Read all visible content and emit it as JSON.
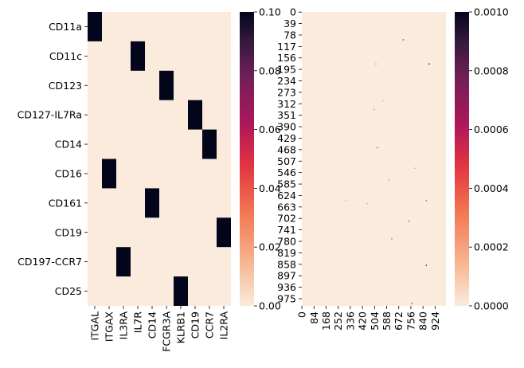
{
  "chart_data": [
    {
      "type": "heatmap",
      "row_labels": [
        "CD11a",
        "CD11c",
        "CD123",
        "CD127-IL7Ra",
        "CD14",
        "CD16",
        "CD161",
        "CD19",
        "CD197-CCR7",
        "CD25"
      ],
      "col_labels": [
        "ITGAL",
        "ITGAX",
        "IL3RA",
        "IL7R",
        "CD14",
        "FCGR3A",
        "KLRB1",
        "CD19",
        "CCR7",
        "IL2RA"
      ],
      "cells": [
        {
          "row": 0,
          "col": 0,
          "value": 0.1
        },
        {
          "row": 1,
          "col": 3,
          "value": 0.1
        },
        {
          "row": 2,
          "col": 5,
          "value": 0.1
        },
        {
          "row": 3,
          "col": 7,
          "value": 0.1
        },
        {
          "row": 4,
          "col": 8,
          "value": 0.1
        },
        {
          "row": 5,
          "col": 1,
          "value": 0.1
        },
        {
          "row": 6,
          "col": 4,
          "value": 0.1
        },
        {
          "row": 7,
          "col": 9,
          "value": 0.1
        },
        {
          "row": 8,
          "col": 2,
          "value": 0.1
        },
        {
          "row": 9,
          "col": 6,
          "value": 0.1
        }
      ],
      "default_value": 0.0,
      "colormap": "rocket_r",
      "colorbar": {
        "range": [
          0.0,
          0.1
        ],
        "ticks": [
          "0.00",
          "0.02",
          "0.04",
          "0.06",
          "0.08",
          "0.10"
        ]
      }
    },
    {
      "type": "heatmap",
      "n_rows": 1000,
      "n_cols": 1000,
      "y_tick_labels": [
        "0",
        "39",
        "78",
        "117",
        "156",
        "195",
        "234",
        "273",
        "312",
        "351",
        "390",
        "429",
        "468",
        "507",
        "546",
        "585",
        "624",
        "663",
        "702",
        "741",
        "780",
        "819",
        "858",
        "897",
        "936",
        "975"
      ],
      "x_tick_labels": [
        "0",
        "84",
        "168",
        "252",
        "336",
        "420",
        "504",
        "588",
        "672",
        "756",
        "840",
        "924"
      ],
      "y_tick_step": 39,
      "x_tick_step": 84,
      "default_value": 0.0,
      "sparse_points": [
        {
          "x": 700,
          "y": 93,
          "v": 0.0006
        },
        {
          "x": 880,
          "y": 175,
          "v": 0.001
        },
        {
          "x": 510,
          "y": 175,
          "v": 0.0003
        },
        {
          "x": 560,
          "y": 300,
          "v": 0.0002
        },
        {
          "x": 500,
          "y": 330,
          "v": 0.0003
        },
        {
          "x": 520,
          "y": 460,
          "v": 0.0005
        },
        {
          "x": 600,
          "y": 570,
          "v": 0.0003
        },
        {
          "x": 780,
          "y": 530,
          "v": 0.0002
        },
        {
          "x": 860,
          "y": 640,
          "v": 0.0004
        },
        {
          "x": 740,
          "y": 710,
          "v": 0.0005
        },
        {
          "x": 620,
          "y": 770,
          "v": 0.0004
        },
        {
          "x": 860,
          "y": 860,
          "v": 0.0009
        },
        {
          "x": 760,
          "y": 990,
          "v": 0.0006
        },
        {
          "x": 300,
          "y": 640,
          "v": 0.0002
        },
        {
          "x": 450,
          "y": 650,
          "v": 0.0002
        }
      ],
      "colormap": "rocket_r",
      "colorbar": {
        "range": [
          0.0,
          0.001
        ],
        "ticks": [
          "0.0000",
          "0.0002",
          "0.0004",
          "0.0006",
          "0.0008",
          "0.0010"
        ]
      }
    }
  ]
}
